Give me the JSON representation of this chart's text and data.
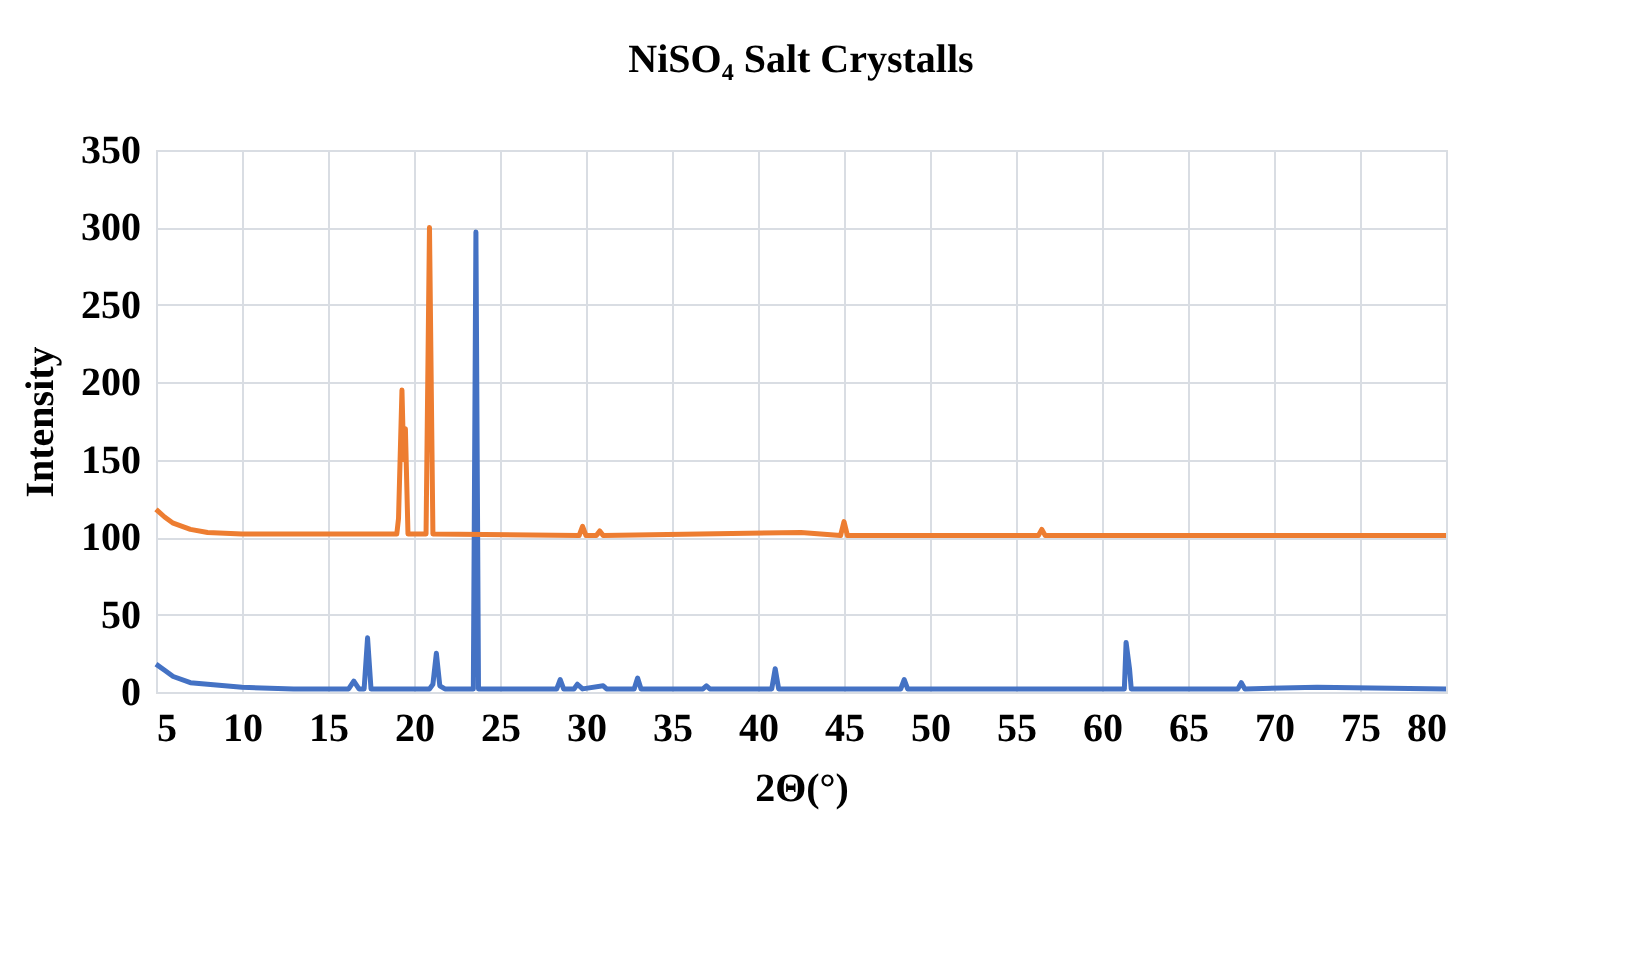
{
  "chart_data": {
    "type": "line",
    "title": "NiSO₄ Salt Crystalls",
    "xlabel": "2Θ(°)",
    "ylabel": "Intensity",
    "xlim": [
      5,
      80
    ],
    "xticks": [
      5,
      10,
      15,
      20,
      25,
      30,
      35,
      40,
      45,
      50,
      55,
      60,
      65,
      70,
      75,
      80
    ],
    "ylim": [
      0,
      350
    ],
    "yticks": [
      0,
      50,
      100,
      150,
      200,
      250,
      300,
      350
    ],
    "grid": true,
    "marker": "none",
    "line_style": "solid",
    "series": [
      {
        "color": "#4472c4",
        "x": [
          5,
          5.5,
          6,
          7,
          8,
          10,
          13,
          16.2,
          16.5,
          16.8,
          17.1,
          17.3,
          17.5,
          20.9,
          21.1,
          21.3,
          21.5,
          21.8,
          23.45,
          23.6,
          23.75,
          28.3,
          28.5,
          28.7,
          29.3,
          29.5,
          29.8,
          31,
          31.2,
          32.8,
          33,
          33.2,
          36.8,
          37,
          37.2,
          40.8,
          41,
          41.2,
          48.3,
          48.5,
          48.7,
          61.3,
          61.4,
          61.6,
          61.7,
          67.9,
          68.1,
          68.3,
          72.5,
          80
        ],
        "values": [
          18,
          14,
          10,
          6,
          5,
          3,
          2,
          2,
          7,
          2,
          2,
          35,
          2,
          2,
          5,
          25,
          4,
          2,
          2,
          297,
          2,
          2,
          8,
          2,
          2,
          5,
          2,
          4,
          2,
          2,
          9,
          2,
          2,
          4,
          2,
          2,
          15,
          2,
          2,
          8,
          2,
          2,
          32,
          15,
          2,
          2,
          6,
          2,
          3,
          2
        ]
      },
      {
        "color": "#ed7d31",
        "x": [
          5,
          5.5,
          6,
          7,
          8,
          10,
          14,
          19,
          19.1,
          19.3,
          19.4,
          19.5,
          19.65,
          20.7,
          20.9,
          21.1,
          29.6,
          29.8,
          30,
          30.6,
          30.8,
          31,
          42.5,
          44.8,
          45,
          45.2,
          56.3,
          56.5,
          56.7,
          80
        ],
        "values": [
          118,
          113,
          109,
          105,
          103,
          102,
          102,
          102,
          112,
          195,
          150,
          170,
          102,
          102,
          300,
          102,
          101,
          107,
          101,
          101,
          104,
          101,
          103,
          101,
          110,
          101,
          101,
          105,
          101,
          101
        ]
      }
    ]
  }
}
